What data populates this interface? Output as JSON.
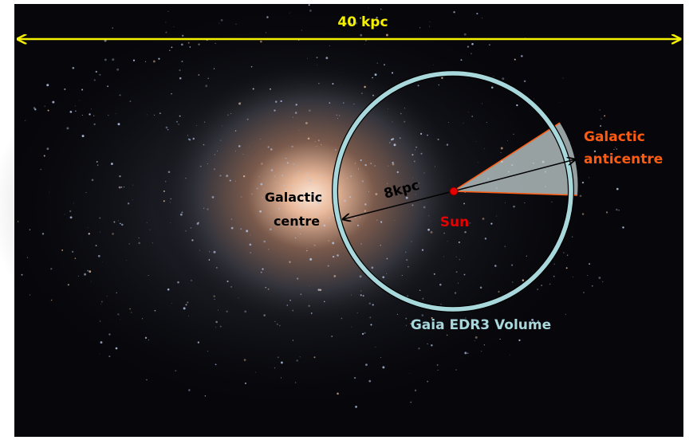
{
  "diagram": {
    "scale_label": "40 kpc",
    "radius_label": "8kpc",
    "centre_label": [
      "Galactic",
      "centre"
    ],
    "anticentre_label": [
      "Galactic",
      "anticentre"
    ],
    "sun_label": "Sun",
    "volume_label": "Gaia EDR3 Volume"
  },
  "colors": {
    "scale_arrow": "#f5f000",
    "anticentre": "#ff5a10",
    "sun": "#e80000",
    "volume": "#a8d8dc",
    "wedge": "#c8d4d4"
  }
}
